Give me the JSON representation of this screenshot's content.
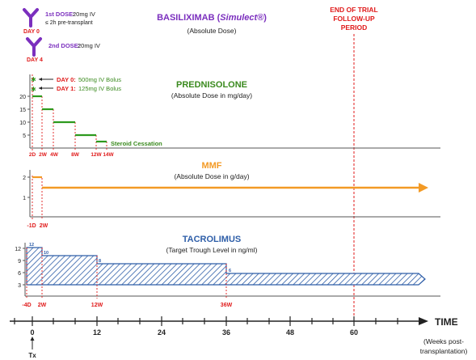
{
  "colors": {
    "basiliximab": "#7b2fbe",
    "prednisolone_text": "#3a8a1e",
    "prednisolone_line": "#2e9a1e",
    "mmf": "#f39a25",
    "tacrolimus": "#2e5ea8",
    "red": "#e01b1b",
    "axis": "#222222",
    "gray_axis": "#555555"
  },
  "basiliximab": {
    "title_prefix": "BASILIXIMAB (",
    "title_brand": "Simulect®",
    "title_suffix": ")",
    "subtitle": "(Absolute Dose)",
    "dose1_label": "1st DOSE:",
    "dose1_value": "20mg IV",
    "dose1_note": "≤ 2h pre-transplant",
    "dose1_day": "DAY 0",
    "dose2_label": "2nd DOSE:",
    "dose2_value": "20mg IV",
    "dose2_day": "DAY 4"
  },
  "end_of_trial": {
    "line1": "END OF TRIAL",
    "line2": "FOLLOW-UP",
    "line3": "PERIOD"
  },
  "prednisolone": {
    "title": "PREDNISOLONE",
    "subtitle": "(Absolute Dose in mg/day)",
    "day0_label": "DAY 0:",
    "day0_value": "500mg IV Bolus",
    "day1_label": "DAY 1:",
    "day1_value": "125mg IV Bolus",
    "cessation": "Steroid Cessation",
    "y_ticks": [
      "20",
      "15",
      "10",
      "5"
    ],
    "x_ticks": [
      "2D",
      "2W",
      "4W",
      "8W",
      "12W",
      "14W"
    ],
    "steps": [
      20,
      15,
      10,
      5,
      2.5
    ]
  },
  "mmf": {
    "title": "MMF",
    "subtitle": "(Absolute Dose in g/day)",
    "y_ticks": [
      "2",
      "1"
    ],
    "x_ticks": [
      "-1D",
      "2W"
    ],
    "initial_dose": 2,
    "maintenance_dose": 1.5
  },
  "tacrolimus": {
    "title": "TACROLIMUS",
    "subtitle": "(Target Trough Level in ng/ml)",
    "y_ticks": [
      "12",
      "9",
      "6",
      "3"
    ],
    "x_ticks": [
      "-4D",
      "2W",
      "12W",
      "36W"
    ],
    "level_labels": [
      "12",
      "10",
      "8",
      "6"
    ]
  },
  "time_axis": {
    "label": "TIME",
    "ticks": [
      "0",
      "12",
      "24",
      "36",
      "48",
      "60"
    ],
    "note_line1": "(Weeks post-",
    "note_line2": "transplantation)",
    "tx_label": "Tx"
  }
}
